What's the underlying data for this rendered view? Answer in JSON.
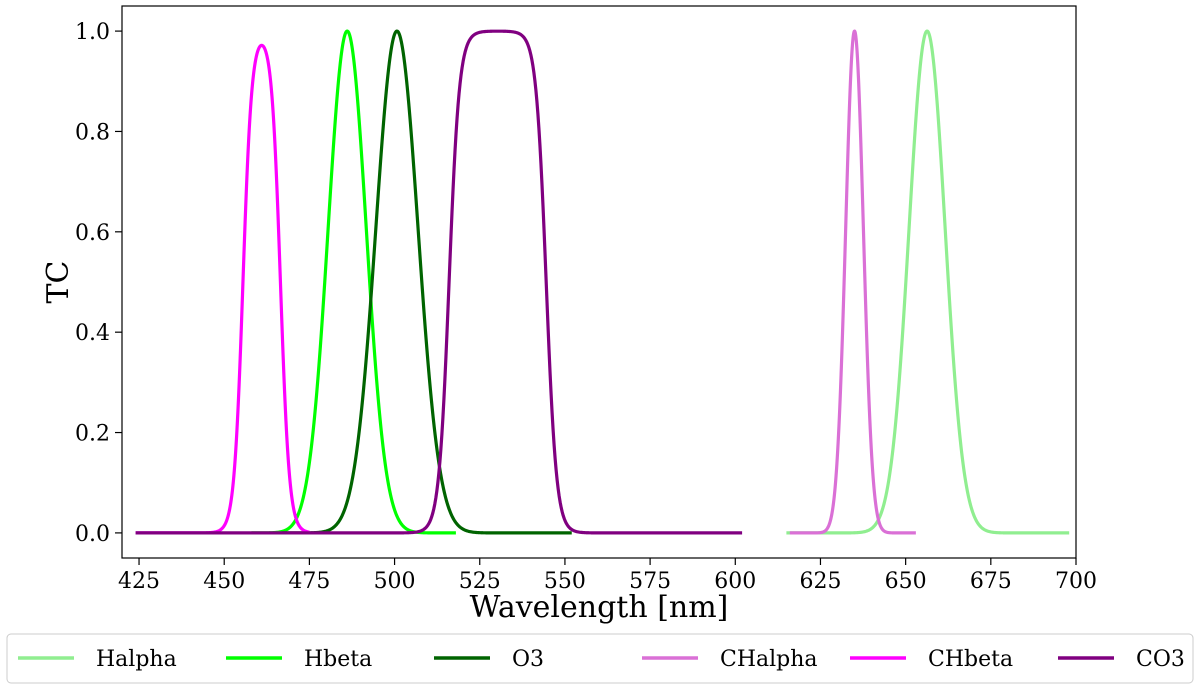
{
  "chart_data": {
    "type": "line",
    "title": "",
    "xlabel": "Wavelength [nm]",
    "ylabel": "TC",
    "xlim": [
      420,
      700
    ],
    "ylim": [
      -0.05,
      1.05
    ],
    "xticks": [
      425,
      450,
      475,
      500,
      525,
      550,
      575,
      600,
      625,
      650,
      675,
      700
    ],
    "yticks": [
      0.0,
      0.2,
      0.4,
      0.6,
      0.8,
      1.0
    ],
    "ytick_labels": [
      "0.0",
      "0.2",
      "0.4",
      "0.6",
      "0.8",
      "1.0"
    ],
    "grid": false,
    "legend_position": "below",
    "series": [
      {
        "name": "Halpha",
        "color": "#90ee90",
        "shape": "gauss",
        "center": 656.3,
        "sigma": 5.3,
        "range": [
          615,
          698
        ]
      },
      {
        "name": "Hbeta",
        "color": "#00ff00",
        "shape": "gauss",
        "center": 486.1,
        "sigma": 5.6,
        "range": [
          458,
          518
        ]
      },
      {
        "name": "O3",
        "color": "#006400",
        "shape": "gauss",
        "center": 500.7,
        "sigma": 6.2,
        "range": [
          467,
          552
        ]
      },
      {
        "name": "CHalpha",
        "color": "#da70d6",
        "shape": "gauss",
        "center": 635.0,
        "sigma": 2.6,
        "range": [
          616,
          653
        ]
      },
      {
        "name": "CHbeta",
        "color": "#ff00ff",
        "shape": "box",
        "low": 455.5,
        "high": 466.5,
        "edge": 1.3,
        "range": [
          424,
          475
        ]
      },
      {
        "name": "CO3",
        "color": "#800080",
        "shape": "box",
        "low": 516.0,
        "high": 544.5,
        "edge": 1.5,
        "range": [
          424,
          602
        ]
      }
    ]
  }
}
